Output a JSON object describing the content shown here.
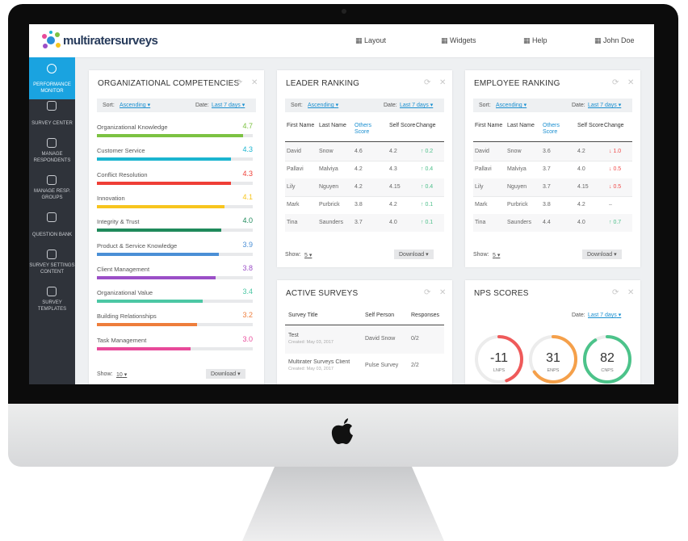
{
  "header": {
    "logo": "multiratersurveys",
    "nav": [
      "Layout",
      "Widgets",
      "Help",
      "John Doe"
    ]
  },
  "sidebar": [
    "PERFORMANCE MONITOR",
    "SURVEY CENTER",
    "MANAGE RESPONDENTS",
    "MANAGE RESP. GROUPS",
    "QUESTION BANK",
    "SURVEY SETTINGS CONTENT",
    "SURVEY TEMPLATES"
  ],
  "competencies": {
    "title": "ORGANIZATIONAL COMPETENCIES",
    "sort_label": "Sort:",
    "sort": "Ascending",
    "date_label": "Date:",
    "date": "Last 7 days",
    "items": [
      {
        "name": "Organizational Knowledge",
        "value": 4.7,
        "color": "#7cc242"
      },
      {
        "name": "Customer Service",
        "value": 4.3,
        "color": "#1bb5d0"
      },
      {
        "name": "Conflict Resolution",
        "value": 4.3,
        "color": "#ef3e36"
      },
      {
        "name": "Innovation",
        "value": 4.1,
        "color": "#f7c51e"
      },
      {
        "name": "Integrity & Trust",
        "value": 4.0,
        "value_label": "4.0",
        "color": "#1f8a5b"
      },
      {
        "name": "Product & Service Knowledge",
        "value": 3.9,
        "color": "#4a8fd6"
      },
      {
        "name": "Client Management",
        "value": 3.8,
        "color": "#9b4fc7"
      },
      {
        "name": "Organizational Value",
        "value": 3.4,
        "color": "#4cc7a4"
      },
      {
        "name": "Building Relationships",
        "value": 3.2,
        "color": "#ee7d3b"
      },
      {
        "name": "Task Management",
        "value": 3.0,
        "value_label": "3.0",
        "color": "#e84a9a"
      }
    ],
    "show_label": "Show:",
    "show": "10",
    "download": "Download"
  },
  "leader": {
    "title": "LEADER RANKING",
    "sort_label": "Sort:",
    "sort": "Ascending",
    "date_label": "Date:",
    "date": "Last 7 days",
    "columns": [
      "First Name",
      "Last Name",
      "Others Score",
      "Self Score",
      "Change"
    ],
    "rows": [
      {
        "cells": [
          "David",
          "Snow",
          "4.6",
          "4.2",
          "0.2"
        ],
        "trend": "up"
      },
      {
        "cells": [
          "Pallavi",
          "Malviya",
          "4.2",
          "4.3",
          "0.4"
        ],
        "trend": "up"
      },
      {
        "cells": [
          "Lily",
          "Nguyen",
          "4.2",
          "4.15",
          "0.4"
        ],
        "trend": "up"
      },
      {
        "cells": [
          "Mark",
          "Purbrick",
          "3.8",
          "4.2",
          "0.1"
        ],
        "trend": "up"
      },
      {
        "cells": [
          "Tina",
          "Saunders",
          "3.7",
          "4.0",
          "0.1"
        ],
        "trend": "up"
      }
    ],
    "show_label": "Show:",
    "show": "5",
    "download": "Download"
  },
  "employee": {
    "title": "EMPLOYEE RANKING",
    "sort_label": "Sort:",
    "sort": "Ascending",
    "date_label": "Date:",
    "date": "Last 7 days",
    "columns": [
      "First Name",
      "Last Name",
      "Others Score",
      "Self Score",
      "Change"
    ],
    "rows": [
      {
        "cells": [
          "David",
          "Snow",
          "3.6",
          "4.2",
          "1.0"
        ],
        "trend": "down"
      },
      {
        "cells": [
          "Pallavi",
          "Malviya",
          "3.7",
          "4.0",
          "0.5"
        ],
        "trend": "down"
      },
      {
        "cells": [
          "Lily",
          "Nguyen",
          "3.7",
          "4.15",
          "0.5"
        ],
        "trend": "down"
      },
      {
        "cells": [
          "Mark",
          "Purbrick",
          "3.8",
          "4.2",
          "–"
        ],
        "trend": "none"
      },
      {
        "cells": [
          "Tina",
          "Saunders",
          "4.4",
          "4.0",
          "0.7"
        ],
        "trend": "up"
      }
    ],
    "show_label": "Show:",
    "show": "5",
    "download": "Download"
  },
  "active": {
    "title": "ACTIVE SURVEYS",
    "columns": [
      "Survey Title",
      "Self Person",
      "Responses"
    ],
    "rows": [
      {
        "title": "Test",
        "created": "Created: May 03, 2017",
        "person": "David Snow",
        "responses": "0/2"
      },
      {
        "title": "Multirater Surveys Client",
        "created": "Created: May 03, 2017",
        "person": "Pulse Survey",
        "responses": "2/2"
      }
    ]
  },
  "nps": {
    "title": "NPS SCORES",
    "date_label": "Date:",
    "date": "Last 7 days",
    "scores": [
      {
        "value": -11,
        "label": "LNPS",
        "color": "#ef5a5a"
      },
      {
        "value": 31,
        "label": "ENPS",
        "color": "#f5a04a"
      },
      {
        "value": 82,
        "label": "CNPS",
        "color": "#4cc38a"
      }
    ]
  }
}
